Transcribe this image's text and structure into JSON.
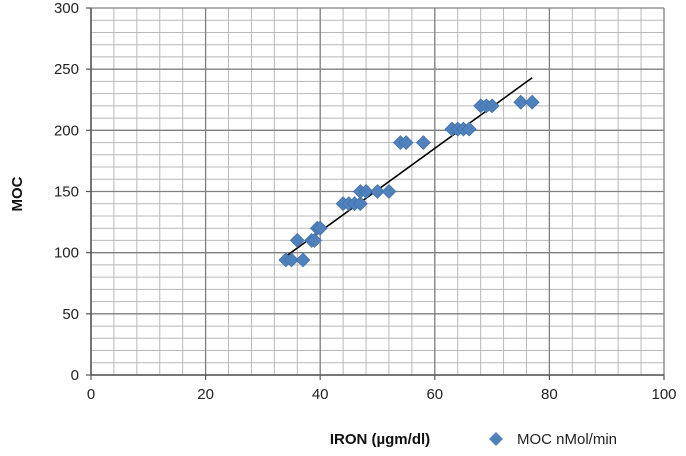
{
  "chart_data": {
    "type": "scatter",
    "title": "",
    "xlabel": "IRON (µgm/dl)",
    "ylabel": "MOC",
    "xlim": [
      0,
      100
    ],
    "ylim": [
      0,
      300
    ],
    "x_ticks": [
      "0",
      "20",
      "40",
      "60",
      "80",
      "100"
    ],
    "y_ticks": [
      "0",
      "50",
      "100",
      "150",
      "200",
      "250",
      "300"
    ],
    "x_tick_values": [
      0,
      20,
      40,
      60,
      80,
      100
    ],
    "y_tick_values": [
      0,
      50,
      100,
      150,
      200,
      250,
      300
    ],
    "minor_x_step": 4,
    "minor_y_step": 10,
    "grid": true,
    "legend_position": "bottom-right",
    "series": [
      {
        "name": "MOC  nMol/min",
        "marker": "diamond",
        "color": "#4F81BD",
        "points": [
          [
            34,
            94
          ],
          [
            35,
            94
          ],
          [
            37,
            94
          ],
          [
            36,
            110
          ],
          [
            38.5,
            110
          ],
          [
            39,
            110
          ],
          [
            39.5,
            120
          ],
          [
            40,
            120
          ],
          [
            44,
            140
          ],
          [
            45,
            140
          ],
          [
            46,
            140
          ],
          [
            47,
            140
          ],
          [
            47,
            150
          ],
          [
            48,
            150
          ],
          [
            50,
            150
          ],
          [
            52,
            150
          ],
          [
            54,
            190
          ],
          [
            55,
            190
          ],
          [
            58,
            190
          ],
          [
            63,
            201
          ],
          [
            64,
            201
          ],
          [
            65,
            201
          ],
          [
            66,
            201
          ],
          [
            68,
            220
          ],
          [
            69,
            220
          ],
          [
            70,
            220
          ],
          [
            75,
            223
          ],
          [
            77,
            223
          ]
        ]
      }
    ],
    "trendline": {
      "x": [
        34,
        77
      ],
      "y": [
        97,
        243
      ],
      "color": "#000000"
    }
  }
}
